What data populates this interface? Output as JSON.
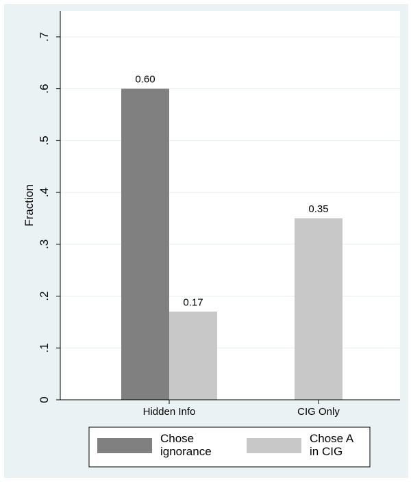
{
  "chart_data": {
    "type": "bar",
    "ylabel": "Fraction",
    "ylim": [
      0,
      0.75
    ],
    "yticks": [
      {
        "value": 0,
        "label": "0"
      },
      {
        "value": 0.1,
        "label": ".1"
      },
      {
        "value": 0.2,
        "label": ".2"
      },
      {
        "value": 0.3,
        "label": ".3"
      },
      {
        "value": 0.4,
        "label": ".4"
      },
      {
        "value": 0.5,
        "label": ".5"
      },
      {
        "value": 0.6,
        "label": ".6"
      },
      {
        "value": 0.7,
        "label": ".7"
      }
    ],
    "categories": [
      "Hidden Info",
      "CIG Only"
    ],
    "series": [
      {
        "name": "Chose ignorance",
        "color": "#808080",
        "values": [
          0.6,
          null
        ],
        "labels": [
          "0.60",
          null
        ]
      },
      {
        "name": "Chose A in CIG",
        "color": "#c8c8c8",
        "values": [
          0.17,
          0.35
        ],
        "labels": [
          "0.17",
          "0.35"
        ]
      }
    ],
    "grid": true,
    "legend": {
      "placement": "bottom",
      "items": [
        {
          "line1": "Chose",
          "line2": "ignorance"
        },
        {
          "line1": "Chose A",
          "line2": "in CIG"
        }
      ]
    }
  }
}
